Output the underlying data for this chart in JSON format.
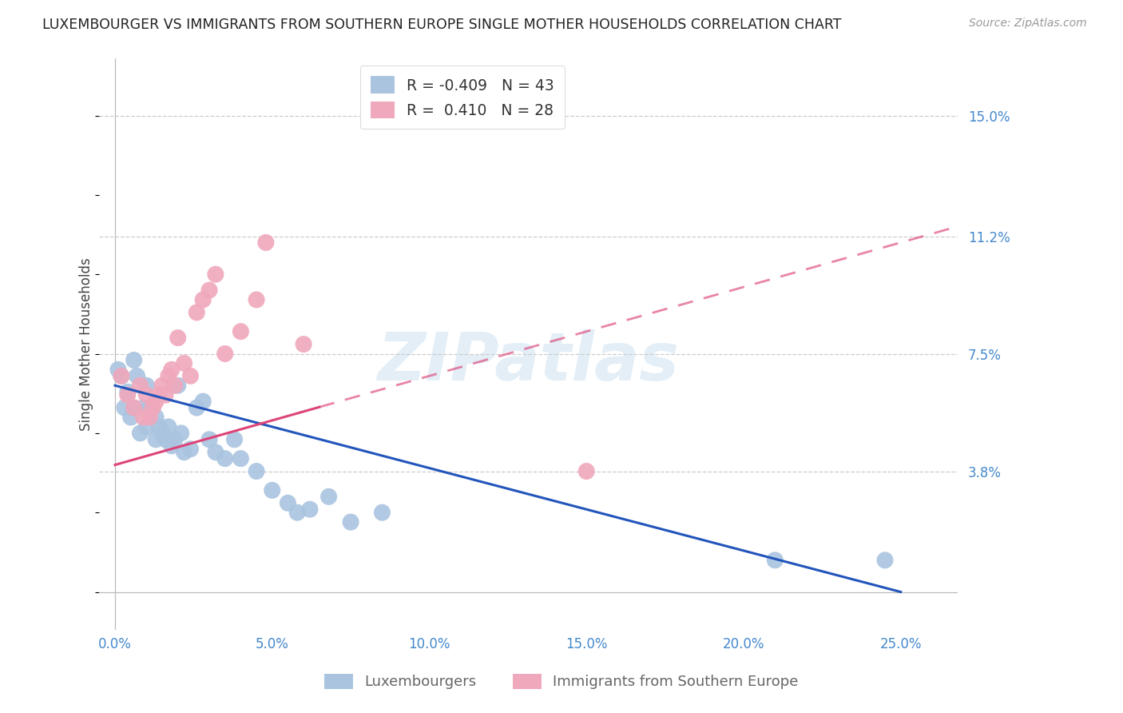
{
  "title": "LUXEMBOURGER VS IMMIGRANTS FROM SOUTHERN EUROPE SINGLE MOTHER HOUSEHOLDS CORRELATION CHART",
  "source": "Source: ZipAtlas.com",
  "ylabel": "Single Mother Households",
  "ytick_values": [
    0.0,
    0.038,
    0.075,
    0.112,
    0.15
  ],
  "ytick_labels": [
    "",
    "3.8%",
    "7.5%",
    "11.2%",
    "15.0%"
  ],
  "xtick_values": [
    0.0,
    0.05,
    0.1,
    0.15,
    0.2,
    0.25
  ],
  "xtick_labels": [
    "0.0%",
    "5.0%",
    "10.0%",
    "15.0%",
    "20.0%",
    "25.0%"
  ],
  "xlim": [
    -0.005,
    0.268
  ],
  "ylim": [
    -0.012,
    0.168
  ],
  "blue_color": "#aac4e0",
  "pink_color": "#f0a8bc",
  "blue_line_color": "#2255bb",
  "pink_line_color": "#dd4477",
  "grid_color": "#cccccc",
  "axis_color": "#bbbbbb",
  "tick_label_color": "#4488cc",
  "legend_R1": "-0.409",
  "legend_N1": "43",
  "legend_R2": "0.410",
  "legend_N2": "28",
  "label1": "Luxembourgers",
  "label2": "Immigrants from Southern Europe",
  "watermark": "ZIPatlas",
  "blue_x": [
    0.001,
    0.002,
    0.003,
    0.004,
    0.005,
    0.006,
    0.006,
    0.007,
    0.008,
    0.009,
    0.01,
    0.01,
    0.011,
    0.012,
    0.013,
    0.013,
    0.014,
    0.015,
    0.016,
    0.017,
    0.018,
    0.019,
    0.02,
    0.021,
    0.022,
    0.024,
    0.026,
    0.028,
    0.03,
    0.032,
    0.035,
    0.038,
    0.04,
    0.045,
    0.05,
    0.055,
    0.058,
    0.062,
    0.068,
    0.075,
    0.085,
    0.21,
    0.245
  ],
  "blue_y": [
    0.07,
    0.068,
    0.058,
    0.063,
    0.055,
    0.073,
    0.058,
    0.068,
    0.05,
    0.058,
    0.065,
    0.052,
    0.058,
    0.058,
    0.055,
    0.048,
    0.052,
    0.05,
    0.048,
    0.052,
    0.046,
    0.048,
    0.065,
    0.05,
    0.044,
    0.045,
    0.058,
    0.06,
    0.048,
    0.044,
    0.042,
    0.048,
    0.042,
    0.038,
    0.032,
    0.028,
    0.025,
    0.026,
    0.03,
    0.022,
    0.025,
    0.01,
    0.01
  ],
  "pink_x": [
    0.002,
    0.004,
    0.006,
    0.008,
    0.009,
    0.01,
    0.011,
    0.012,
    0.013,
    0.014,
    0.015,
    0.016,
    0.017,
    0.018,
    0.019,
    0.02,
    0.022,
    0.024,
    0.026,
    0.028,
    0.03,
    0.032,
    0.035,
    0.04,
    0.045,
    0.048,
    0.06,
    0.15
  ],
  "pink_y": [
    0.068,
    0.062,
    0.058,
    0.065,
    0.055,
    0.062,
    0.055,
    0.058,
    0.06,
    0.062,
    0.065,
    0.062,
    0.068,
    0.07,
    0.065,
    0.08,
    0.072,
    0.068,
    0.088,
    0.092,
    0.095,
    0.1,
    0.075,
    0.082,
    0.092,
    0.11,
    0.078,
    0.038
  ]
}
